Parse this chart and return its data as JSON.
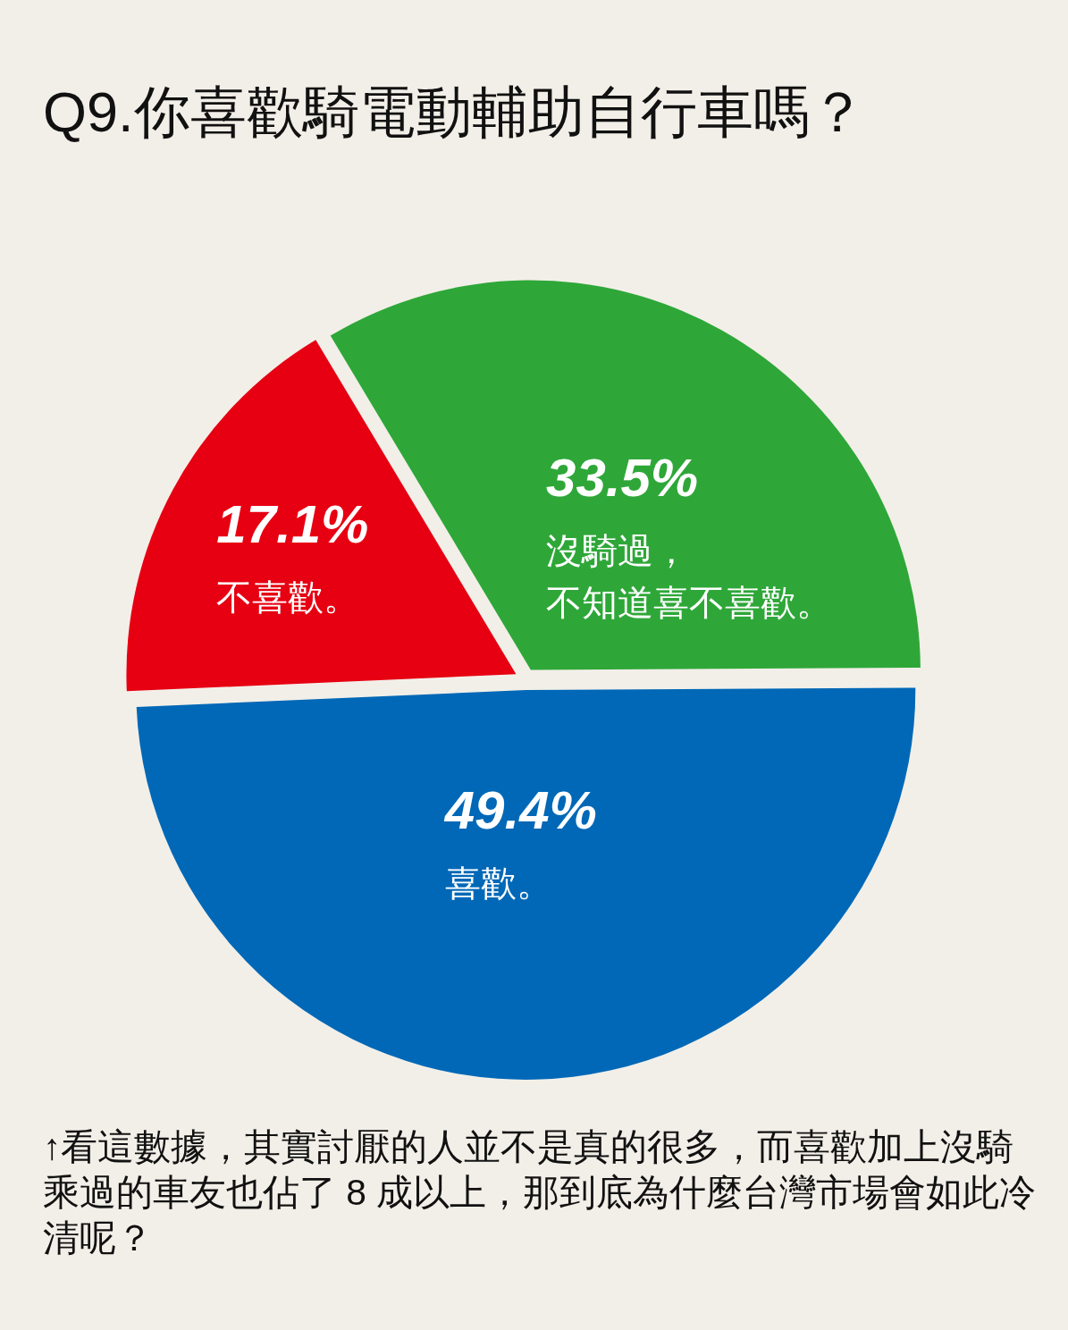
{
  "chart_data": {
    "type": "pie",
    "title": "Q9.你喜歡騎電動輔助自行車嗎？",
    "categories": [
      "不喜歡。",
      "沒騎過，不知道喜不喜歡。",
      "喜歡。"
    ],
    "values": [
      17.1,
      33.5,
      49.4
    ],
    "colors": [
      "#e60012",
      "#2ea738",
      "#0068b7"
    ],
    "value_labels": [
      "17.1%",
      "33.5%",
      "49.4%"
    ],
    "annotations": [
      "↑看這數據，其實討厭的人並不是真的很多，而喜歡加上沒騎乘過的車友也佔了 8 成以上，那到底為什麼台灣市場會如此冷清呢？"
    ]
  }
}
